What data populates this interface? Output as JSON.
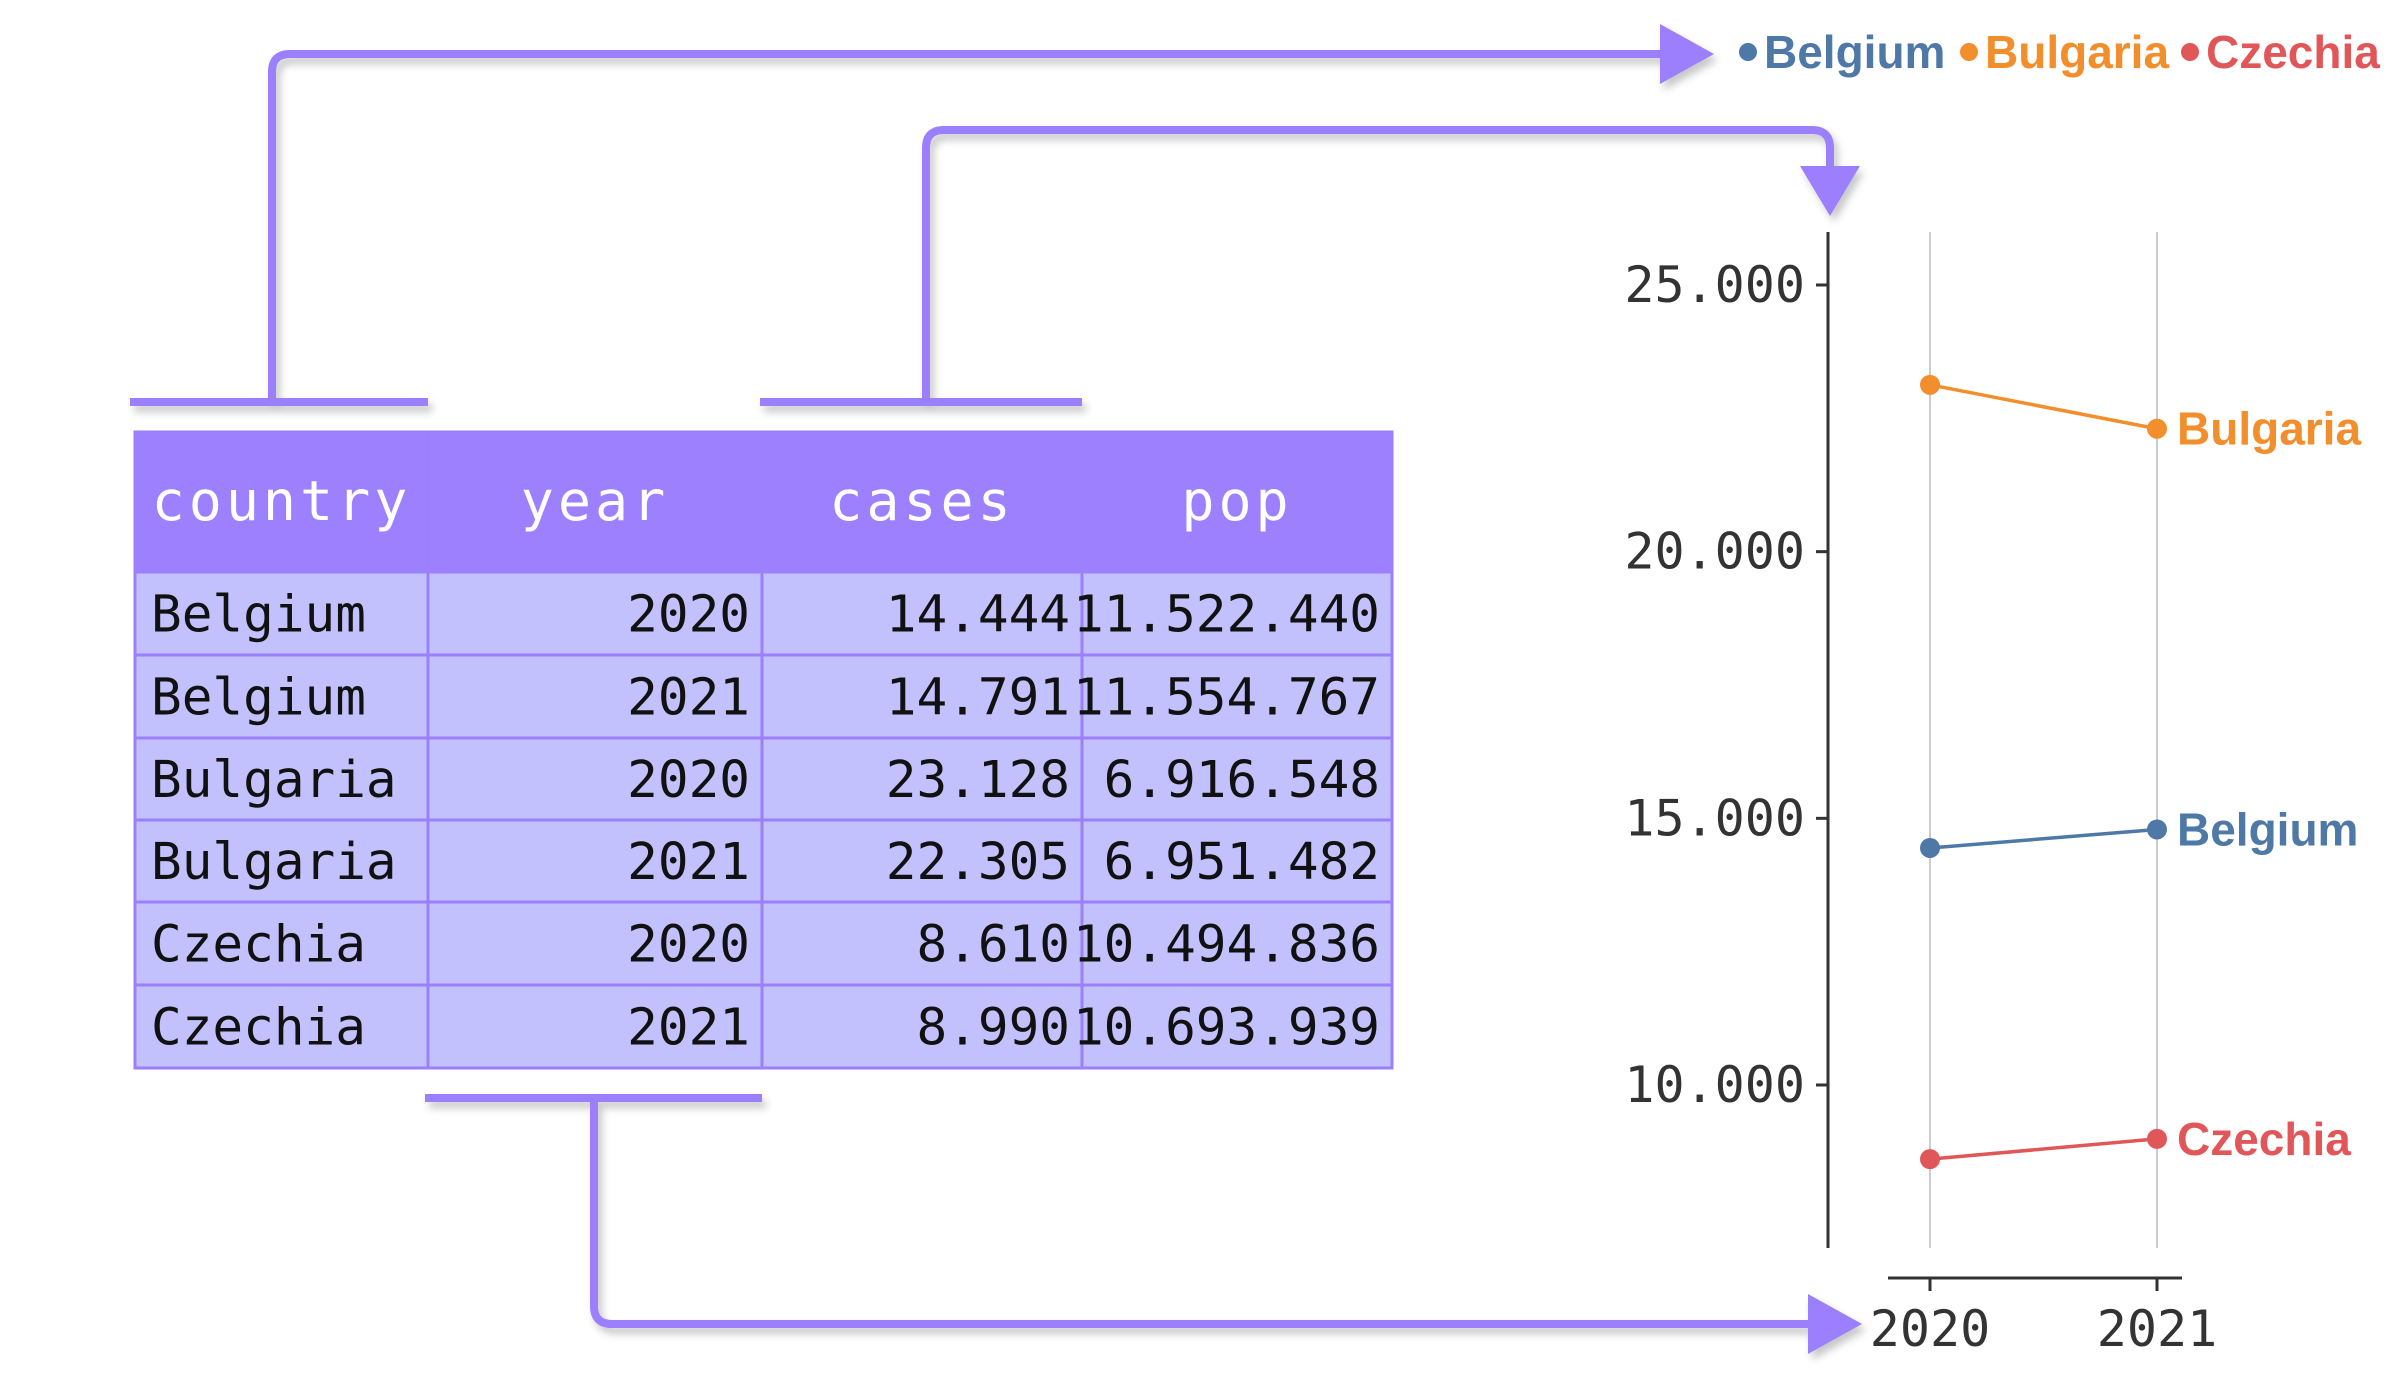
{
  "table": {
    "columns": [
      "country",
      "year",
      "cases",
      "pop"
    ],
    "rows": [
      [
        "Belgium",
        "2020",
        "14.444",
        "11.522.440"
      ],
      [
        "Belgium",
        "2021",
        "14.791",
        "11.554.767"
      ],
      [
        "Bulgaria",
        "2020",
        "23.128",
        "6.916.548"
      ],
      [
        "Bulgaria",
        "2021",
        "22.305",
        "6.951.482"
      ],
      [
        "Czechia",
        "2020",
        "8.610",
        "10.494.836"
      ],
      [
        "Czechia",
        "2021",
        "8.990",
        "10.693.939"
      ]
    ]
  },
  "legend": [
    {
      "name": "Belgium",
      "color": "#4e79a7"
    },
    {
      "name": "Bulgaria",
      "color": "#f28e2b"
    },
    {
      "name": "Czechia",
      "color": "#e15759"
    }
  ],
  "colors": {
    "accent": "#9b7ffd",
    "header_fill": "#9d80fd",
    "cell_fill": "#c2c0fd",
    "grid": "#cccccc",
    "axis": "#333333"
  },
  "chart_data": {
    "type": "line",
    "x": [
      2020,
      2021
    ],
    "xticks": [
      "2020",
      "2021"
    ],
    "yticks": [
      "10.000",
      "15.000",
      "20.000",
      "25.000"
    ],
    "ytick_values": [
      10000,
      15000,
      20000,
      25000
    ],
    "ylim": [
      7000,
      26000
    ],
    "grid": "vertical",
    "legend_position": "top",
    "series": [
      {
        "name": "Belgium",
        "values": [
          14444,
          14791
        ],
        "color": "#4e79a7"
      },
      {
        "name": "Bulgaria",
        "values": [
          23128,
          22305
        ],
        "color": "#f28e2b"
      },
      {
        "name": "Czechia",
        "values": [
          8610,
          8990
        ],
        "color": "#e15759"
      }
    ]
  }
}
